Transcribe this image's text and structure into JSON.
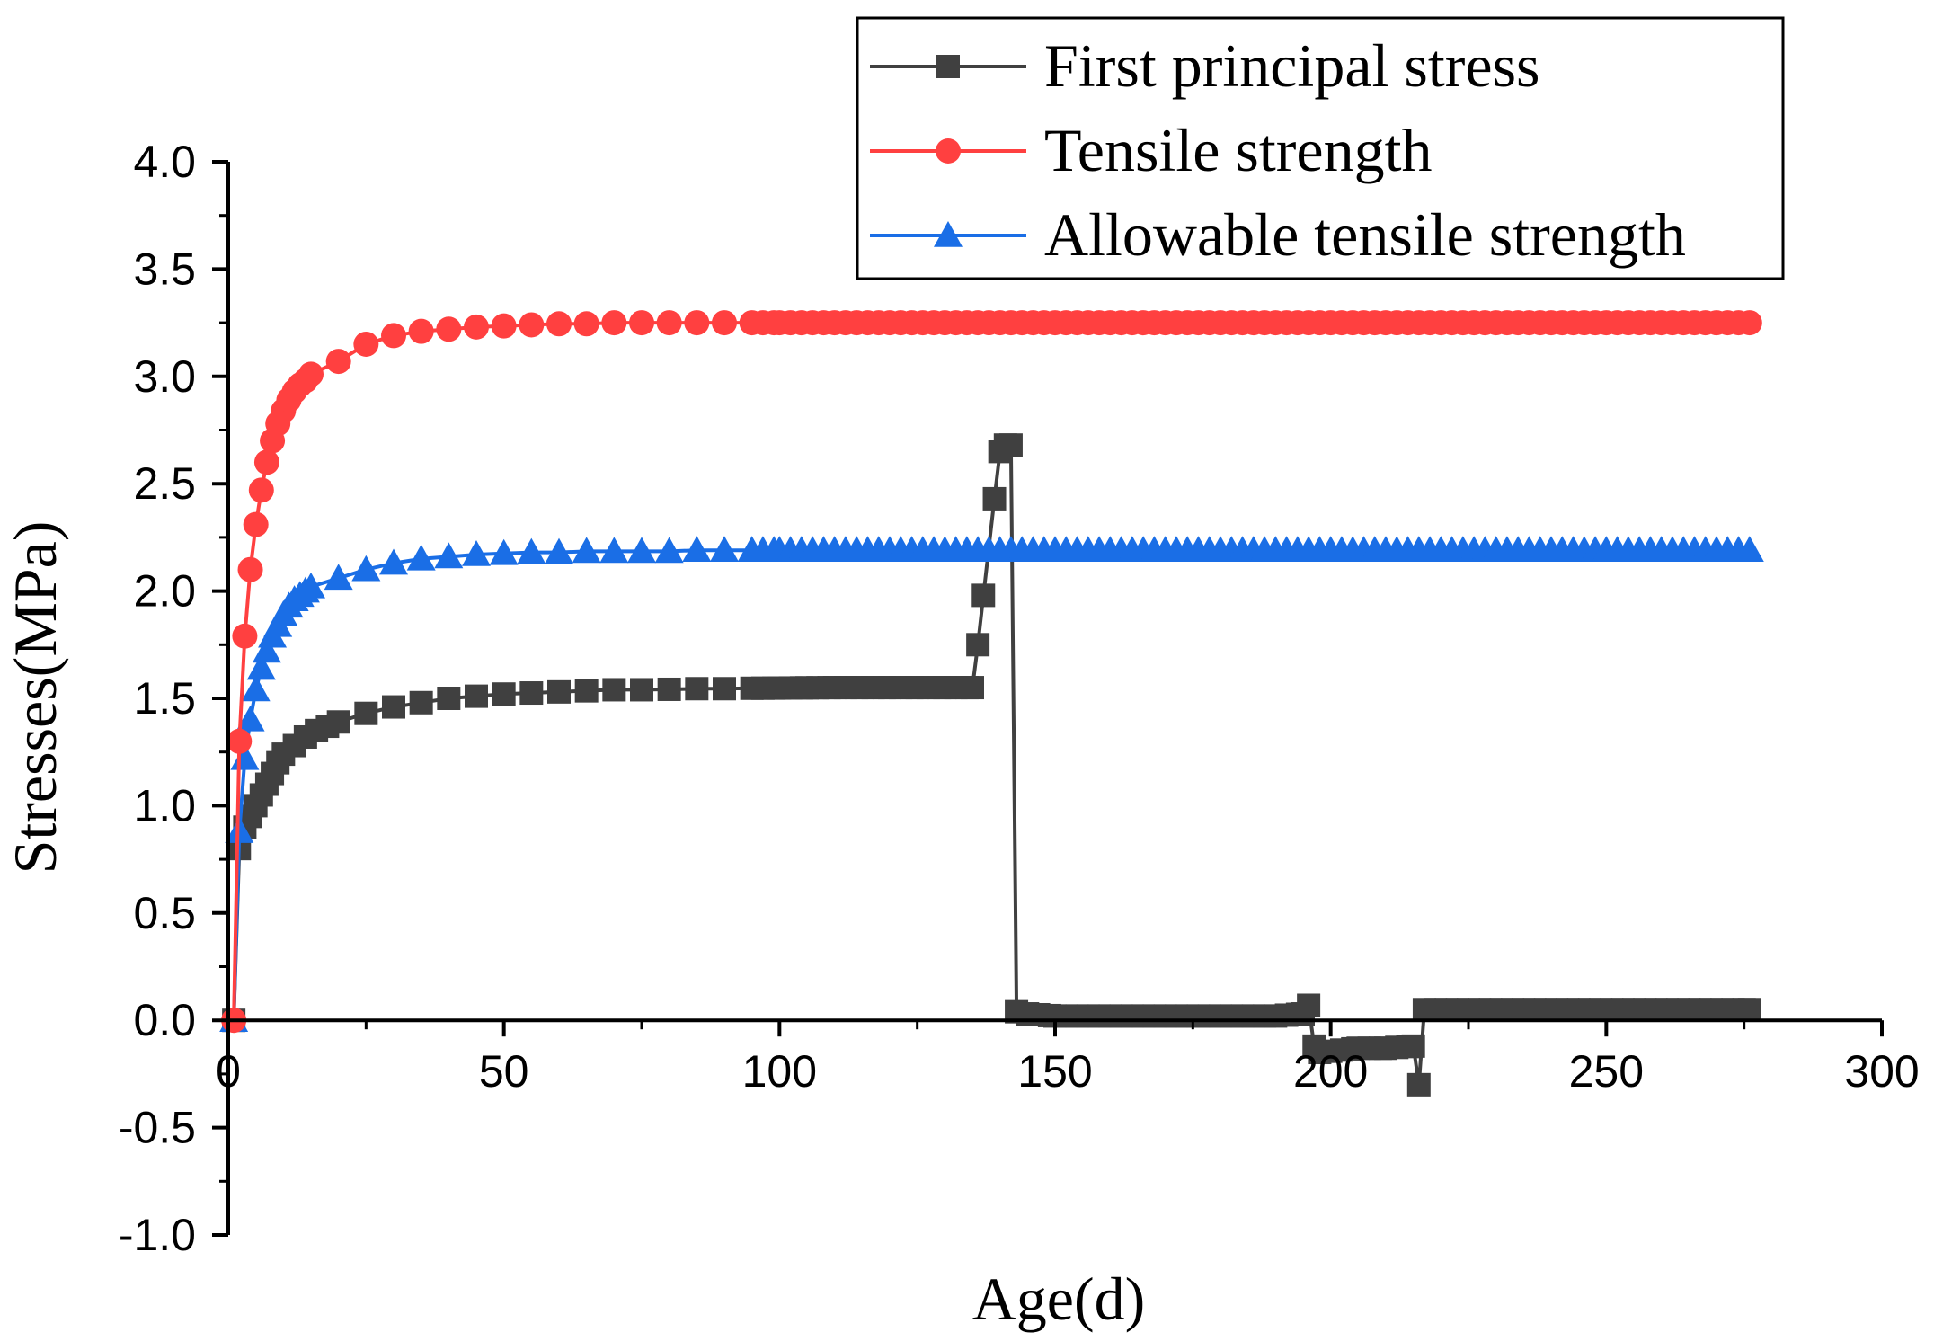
{
  "chart_data": {
    "type": "line",
    "title": "",
    "xlabel": "Age(d)",
    "ylabel": "Stresses(MPa)",
    "xlim": [
      0,
      300
    ],
    "ylim": [
      -1.0,
      4.0
    ],
    "xticks": [
      0,
      50,
      100,
      150,
      200,
      250,
      300
    ],
    "yticks": [
      -1.0,
      -0.5,
      0.0,
      0.5,
      1.0,
      1.5,
      2.0,
      2.5,
      3.0,
      3.5,
      4.0
    ],
    "xtick_labels": [
      "0",
      "50",
      "100",
      "150",
      "200",
      "250",
      "300"
    ],
    "ytick_labels": [
      "-1.0",
      "-0.5",
      "0.0",
      "0.5",
      "1.0",
      "1.5",
      "2.0",
      "2.5",
      "3.0",
      "3.5",
      "4.0"
    ],
    "grid": false,
    "legend_position": "top-right",
    "series": [
      {
        "name": "First principal stress",
        "color": "#404040",
        "marker": "square",
        "points": [
          [
            1,
            0.0
          ],
          [
            2,
            0.8
          ],
          [
            3,
            0.9
          ],
          [
            4,
            0.95
          ],
          [
            5,
            1.0
          ],
          [
            6,
            1.05
          ],
          [
            7,
            1.1
          ],
          [
            8,
            1.15
          ],
          [
            9,
            1.2
          ],
          [
            10,
            1.24
          ],
          [
            12,
            1.28
          ],
          [
            14,
            1.32
          ],
          [
            16,
            1.35
          ],
          [
            18,
            1.37
          ],
          [
            20,
            1.39
          ],
          [
            25,
            1.43
          ],
          [
            30,
            1.46
          ],
          [
            35,
            1.48
          ],
          [
            40,
            1.5
          ],
          [
            45,
            1.51
          ],
          [
            50,
            1.52
          ],
          [
            55,
            1.525
          ],
          [
            60,
            1.53
          ],
          [
            65,
            1.535
          ],
          [
            70,
            1.54
          ],
          [
            75,
            1.54
          ],
          [
            80,
            1.542
          ],
          [
            85,
            1.545
          ],
          [
            90,
            1.545
          ],
          [
            95,
            1.547
          ],
          [
            100,
            1.548
          ],
          [
            105,
            1.549
          ],
          [
            110,
            1.55
          ],
          [
            115,
            1.55
          ],
          [
            120,
            1.55
          ],
          [
            125,
            1.55
          ],
          [
            130,
            1.55
          ],
          [
            135,
            1.55
          ],
          [
            136,
            1.75
          ],
          [
            137,
            1.98
          ],
          [
            139,
            2.43
          ],
          [
            140,
            2.65
          ],
          [
            141,
            2.68
          ],
          [
            142,
            2.68
          ],
          [
            143,
            0.04
          ],
          [
            145,
            0.03
          ],
          [
            150,
            0.02
          ],
          [
            160,
            0.02
          ],
          [
            170,
            0.02
          ],
          [
            180,
            0.02
          ],
          [
            190,
            0.02
          ],
          [
            195,
            0.03
          ],
          [
            196,
            0.07
          ],
          [
            197,
            -0.12
          ],
          [
            198,
            -0.15
          ],
          [
            205,
            -0.13
          ],
          [
            210,
            -0.13
          ],
          [
            215,
            -0.12
          ],
          [
            216,
            -0.3
          ],
          [
            217,
            0.05
          ],
          [
            225,
            0.05
          ],
          [
            235,
            0.05
          ],
          [
            245,
            0.05
          ],
          [
            255,
            0.05
          ],
          [
            265,
            0.05
          ],
          [
            276,
            0.05
          ]
        ]
      },
      {
        "name": "Tensile strength",
        "color": "#ff4040",
        "marker": "circle",
        "points": [
          [
            1,
            0.0
          ],
          [
            2,
            1.3
          ],
          [
            3,
            1.79
          ],
          [
            4,
            2.1
          ],
          [
            5,
            2.31
          ],
          [
            6,
            2.47
          ],
          [
            7,
            2.6
          ],
          [
            8,
            2.7
          ],
          [
            9,
            2.78
          ],
          [
            10,
            2.84
          ],
          [
            11,
            2.89
          ],
          [
            12,
            2.93
          ],
          [
            13,
            2.96
          ],
          [
            14,
            2.98
          ],
          [
            15,
            3.01
          ],
          [
            20,
            3.07
          ],
          [
            25,
            3.15
          ],
          [
            30,
            3.19
          ],
          [
            35,
            3.21
          ],
          [
            40,
            3.22
          ],
          [
            45,
            3.23
          ],
          [
            50,
            3.235
          ],
          [
            55,
            3.24
          ],
          [
            60,
            3.245
          ],
          [
            65,
            3.245
          ],
          [
            70,
            3.25
          ],
          [
            75,
            3.25
          ],
          [
            80,
            3.25
          ],
          [
            85,
            3.25
          ],
          [
            90,
            3.25
          ],
          [
            95,
            3.25
          ],
          [
            100,
            3.25
          ],
          [
            120,
            3.25
          ],
          [
            140,
            3.25
          ],
          [
            160,
            3.25
          ],
          [
            180,
            3.25
          ],
          [
            200,
            3.25
          ],
          [
            220,
            3.25
          ],
          [
            240,
            3.25
          ],
          [
            260,
            3.25
          ],
          [
            276,
            3.25
          ]
        ]
      },
      {
        "name": "Allowable tensile strength",
        "color": "#1a6ee6",
        "marker": "triangle",
        "points": [
          [
            1,
            0.0
          ],
          [
            2,
            0.88
          ],
          [
            3,
            1.22
          ],
          [
            4,
            1.4
          ],
          [
            5,
            1.54
          ],
          [
            6,
            1.64
          ],
          [
            7,
            1.72
          ],
          [
            8,
            1.79
          ],
          [
            9,
            1.84
          ],
          [
            10,
            1.89
          ],
          [
            11,
            1.93
          ],
          [
            12,
            1.96
          ],
          [
            13,
            1.98
          ],
          [
            14,
            2.0
          ],
          [
            15,
            2.02
          ],
          [
            20,
            2.06
          ],
          [
            25,
            2.1
          ],
          [
            30,
            2.13
          ],
          [
            35,
            2.15
          ],
          [
            40,
            2.16
          ],
          [
            45,
            2.17
          ],
          [
            50,
            2.175
          ],
          [
            55,
            2.18
          ],
          [
            60,
            2.18
          ],
          [
            65,
            2.185
          ],
          [
            70,
            2.185
          ],
          [
            75,
            2.185
          ],
          [
            80,
            2.185
          ],
          [
            85,
            2.19
          ],
          [
            90,
            2.19
          ],
          [
            95,
            2.19
          ],
          [
            100,
            2.19
          ],
          [
            120,
            2.19
          ],
          [
            140,
            2.19
          ],
          [
            160,
            2.19
          ],
          [
            180,
            2.19
          ],
          [
            200,
            2.19
          ],
          [
            220,
            2.19
          ],
          [
            240,
            2.19
          ],
          [
            260,
            2.19
          ],
          [
            276,
            2.19
          ]
        ]
      }
    ]
  }
}
